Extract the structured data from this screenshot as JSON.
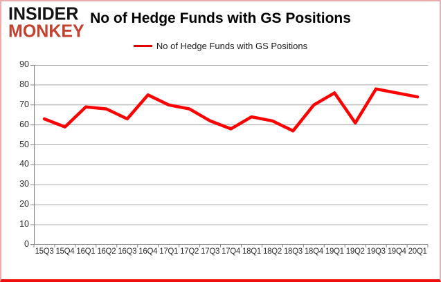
{
  "logo": {
    "line1": "INSIDER",
    "line2": "MONKEY",
    "line2_color": "#c4402f"
  },
  "header": {
    "title": "No of Hedge Funds with GS Positions"
  },
  "legend": {
    "label": "No of Hedge Funds with GS Positions",
    "swatch_color": "#e00000"
  },
  "chart_data": {
    "type": "line",
    "title": "No of Hedge Funds with GS Positions",
    "series": [
      {
        "name": "No of Hedge Funds with GS Positions",
        "values": [
          63,
          59,
          69,
          68,
          63,
          75,
          70,
          68,
          62,
          58,
          64,
          62,
          57,
          70,
          76,
          61,
          78,
          76,
          74
        ]
      }
    ],
    "categories": [
      "15Q3",
      "15Q4",
      "16Q1",
      "16Q2",
      "16Q3",
      "16Q4",
      "17Q1",
      "17Q2",
      "17Q3",
      "17Q4",
      "18Q1",
      "18Q2",
      "18Q3",
      "18Q4",
      "19Q1",
      "19Q2",
      "19Q3",
      "19Q4",
      "20Q1"
    ],
    "ylim": [
      0,
      90
    ],
    "ytick_step": 10,
    "ytick_labels": [
      "0",
      "10",
      "20",
      "30",
      "40",
      "50",
      "60",
      "70",
      "80",
      "90"
    ],
    "grid": true,
    "legend_position": "top-center",
    "line_color": "#fe0000",
    "gridline_color": "#a6a6a6",
    "axis_color": "#808080",
    "xlabel": "",
    "ylabel": ""
  }
}
